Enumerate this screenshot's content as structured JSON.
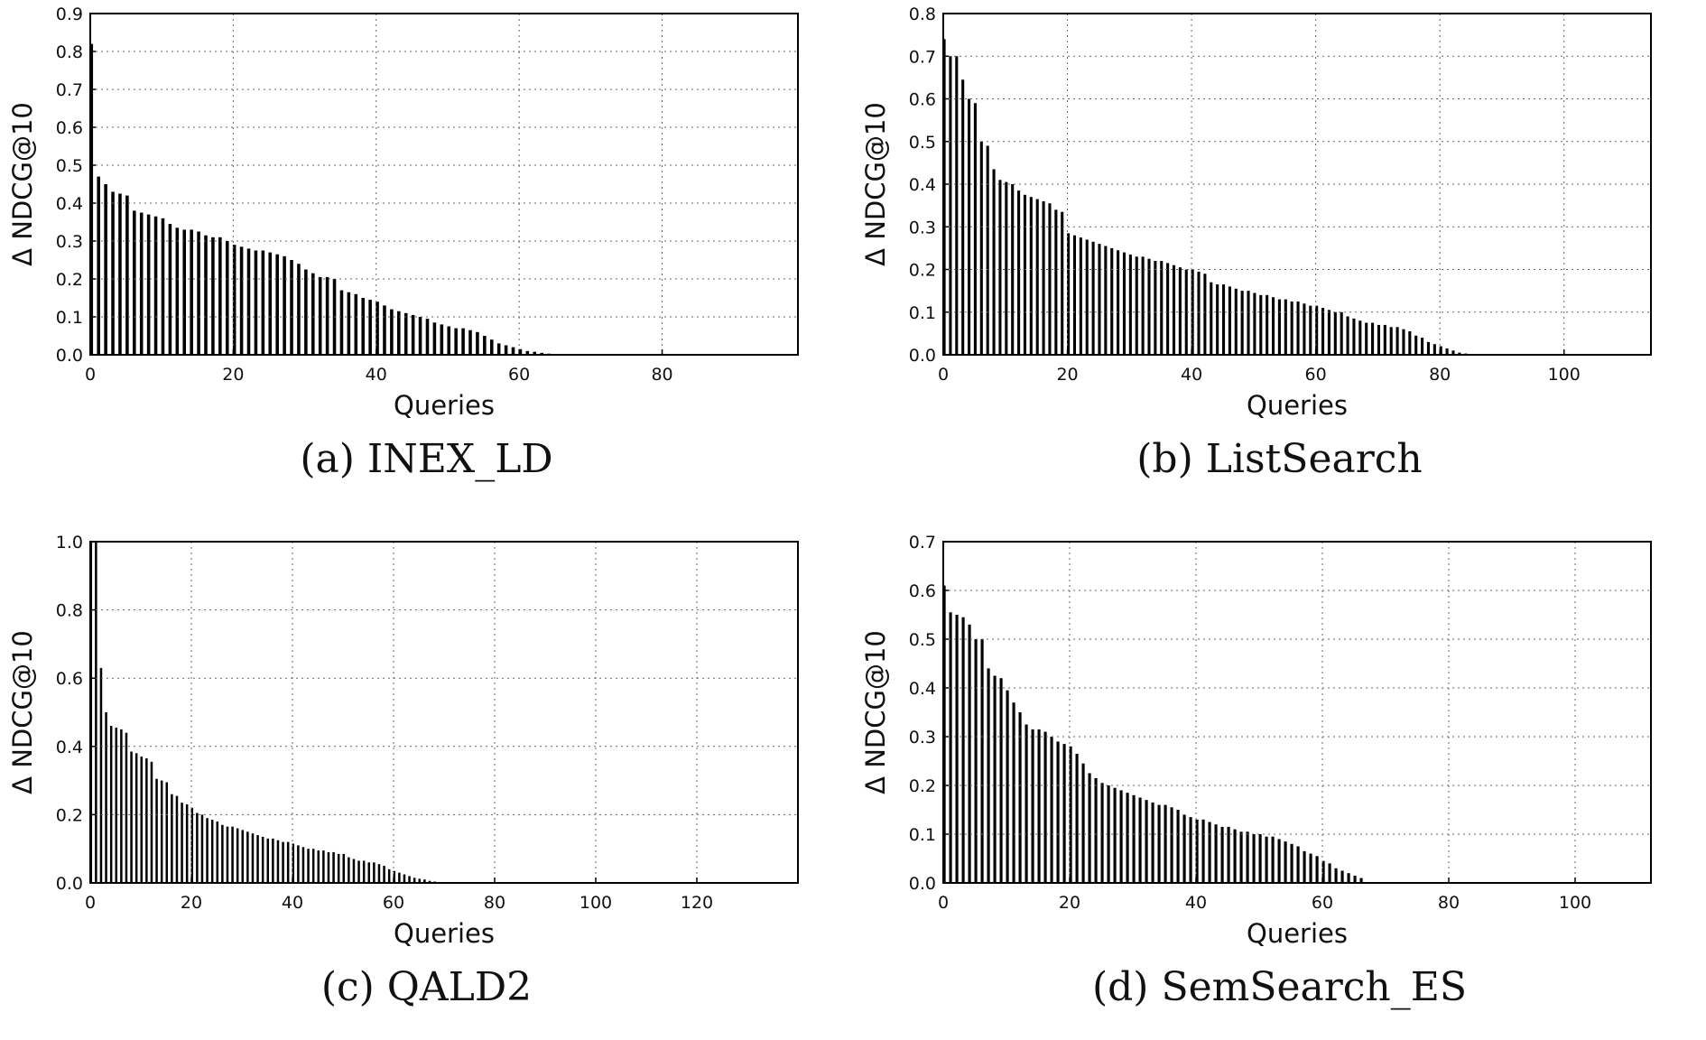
{
  "chart_data": [
    {
      "type": "bar",
      "caption": "(a) INEX_LD",
      "xlabel": "Queries",
      "ylabel": "Δ NDCG@10",
      "xlim": [
        0,
        99
      ],
      "ylim": [
        0,
        0.9
      ],
      "xticks": [
        "0",
        "20",
        "40",
        "60",
        "80"
      ],
      "yticks": [
        "0.0",
        "0.1",
        "0.2",
        "0.3",
        "0.4",
        "0.5",
        "0.6",
        "0.7",
        "0.8",
        "0.9"
      ],
      "grid": true,
      "values": [
        0.82,
        0.47,
        0.45,
        0.43,
        0.425,
        0.42,
        0.38,
        0.375,
        0.37,
        0.365,
        0.36,
        0.345,
        0.335,
        0.33,
        0.33,
        0.325,
        0.315,
        0.31,
        0.31,
        0.3,
        0.29,
        0.285,
        0.28,
        0.275,
        0.275,
        0.27,
        0.265,
        0.26,
        0.25,
        0.24,
        0.225,
        0.215,
        0.205,
        0.205,
        0.2,
        0.17,
        0.165,
        0.16,
        0.15,
        0.145,
        0.14,
        0.13,
        0.12,
        0.115,
        0.11,
        0.105,
        0.1,
        0.095,
        0.085,
        0.08,
        0.075,
        0.07,
        0.07,
        0.065,
        0.06,
        0.05,
        0.04,
        0.03,
        0.025,
        0.02,
        0.015,
        0.01,
        0.008,
        0.005,
        0.003
      ]
    },
    {
      "type": "bar",
      "caption": "(b) ListSearch",
      "xlabel": "Queries",
      "ylabel": "Δ NDCG@10",
      "xlim": [
        0,
        114
      ],
      "ylim": [
        0,
        0.8
      ],
      "xticks": [
        "0",
        "20",
        "40",
        "60",
        "80",
        "100"
      ],
      "yticks": [
        "0.0",
        "0.1",
        "0.2",
        "0.3",
        "0.4",
        "0.5",
        "0.6",
        "0.7",
        "0.8"
      ],
      "grid": true,
      "values": [
        0.74,
        0.7,
        0.7,
        0.645,
        0.6,
        0.59,
        0.5,
        0.49,
        0.435,
        0.41,
        0.405,
        0.4,
        0.385,
        0.375,
        0.37,
        0.365,
        0.36,
        0.355,
        0.34,
        0.335,
        0.285,
        0.28,
        0.275,
        0.27,
        0.265,
        0.26,
        0.255,
        0.25,
        0.245,
        0.24,
        0.235,
        0.23,
        0.23,
        0.225,
        0.22,
        0.22,
        0.215,
        0.21,
        0.205,
        0.2,
        0.2,
        0.195,
        0.19,
        0.17,
        0.165,
        0.165,
        0.16,
        0.155,
        0.15,
        0.15,
        0.145,
        0.14,
        0.14,
        0.135,
        0.13,
        0.13,
        0.125,
        0.125,
        0.12,
        0.115,
        0.115,
        0.11,
        0.105,
        0.1,
        0.1,
        0.09,
        0.085,
        0.08,
        0.075,
        0.075,
        0.07,
        0.07,
        0.065,
        0.065,
        0.06,
        0.055,
        0.045,
        0.04,
        0.03,
        0.025,
        0.02,
        0.015,
        0.01,
        0.005,
        0.003
      ]
    },
    {
      "type": "bar",
      "caption": "(c) QALD2",
      "xlabel": "Queries",
      "ylabel": "Δ NDCG@10",
      "xlim": [
        0,
        140
      ],
      "ylim": [
        0,
        1.0
      ],
      "xticks": [
        "0",
        "20",
        "40",
        "60",
        "80",
        "100",
        "120"
      ],
      "yticks": [
        "0.0",
        "0.2",
        "0.4",
        "0.6",
        "0.8",
        "1.0"
      ],
      "grid": true,
      "values": [
        1.0,
        1.0,
        0.63,
        0.5,
        0.46,
        0.455,
        0.45,
        0.44,
        0.385,
        0.38,
        0.37,
        0.365,
        0.355,
        0.305,
        0.3,
        0.295,
        0.26,
        0.255,
        0.235,
        0.23,
        0.22,
        0.205,
        0.2,
        0.19,
        0.185,
        0.18,
        0.17,
        0.165,
        0.165,
        0.16,
        0.155,
        0.15,
        0.145,
        0.14,
        0.135,
        0.13,
        0.13,
        0.125,
        0.12,
        0.12,
        0.115,
        0.11,
        0.105,
        0.1,
        0.1,
        0.095,
        0.095,
        0.09,
        0.09,
        0.085,
        0.085,
        0.075,
        0.07,
        0.065,
        0.065,
        0.06,
        0.06,
        0.055,
        0.05,
        0.04,
        0.035,
        0.03,
        0.025,
        0.02,
        0.015,
        0.012,
        0.01,
        0.006,
        0.004,
        0.002
      ]
    },
    {
      "type": "bar",
      "caption": "(d) SemSearch_ES",
      "xlabel": "Queries",
      "ylabel": "Δ NDCG@10",
      "xlim": [
        0,
        112
      ],
      "ylim": [
        0,
        0.7
      ],
      "xticks": [
        "0",
        "20",
        "40",
        "60",
        "80",
        "100"
      ],
      "yticks": [
        "0.0",
        "0.1",
        "0.2",
        "0.3",
        "0.4",
        "0.5",
        "0.6",
        "0.7"
      ],
      "grid": true,
      "values": [
        0.61,
        0.555,
        0.55,
        0.545,
        0.53,
        0.5,
        0.5,
        0.44,
        0.425,
        0.42,
        0.395,
        0.37,
        0.35,
        0.325,
        0.315,
        0.315,
        0.31,
        0.3,
        0.29,
        0.285,
        0.28,
        0.265,
        0.245,
        0.225,
        0.215,
        0.205,
        0.2,
        0.195,
        0.19,
        0.185,
        0.18,
        0.175,
        0.17,
        0.165,
        0.16,
        0.16,
        0.155,
        0.15,
        0.14,
        0.135,
        0.13,
        0.13,
        0.125,
        0.12,
        0.115,
        0.115,
        0.11,
        0.105,
        0.105,
        0.1,
        0.1,
        0.095,
        0.095,
        0.09,
        0.085,
        0.08,
        0.075,
        0.065,
        0.06,
        0.055,
        0.045,
        0.04,
        0.03,
        0.025,
        0.02,
        0.015,
        0.01
      ]
    }
  ]
}
